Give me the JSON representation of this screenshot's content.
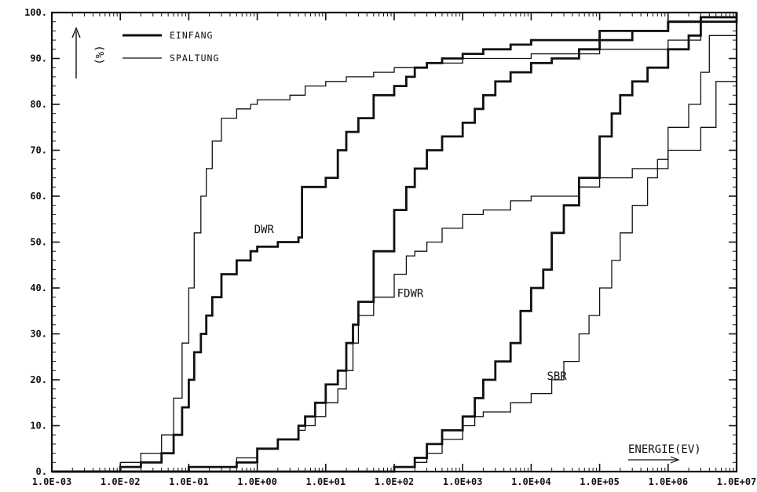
{
  "chart_data": {
    "type": "line",
    "x_scale": "log",
    "xlim": [
      0.001,
      10000000
    ],
    "ylim": [
      0,
      100
    ],
    "grid": false,
    "legend_placement": "top-left",
    "x_tick_labels": [
      "1.0E-03",
      "1.0E-02",
      "1.0E-01",
      "1.0E+00",
      "1.0E+01",
      "1.0E+02",
      "1.0E+03",
      "1.0E+04",
      "1.0E+05",
      "1.0E+06",
      "1.0E+07"
    ],
    "y_tick_labels": [
      "0.",
      "10.",
      "20.",
      "30.",
      "40.",
      "50.",
      "60.",
      "70.",
      "80.",
      "90.",
      "100."
    ],
    "xlabel": "ENERGIE(EV)",
    "ylabel": "(%)",
    "legend": [
      {
        "label": "EINFANG",
        "style": "thick"
      },
      {
        "label": "SPALTUNG",
        "style": "thin"
      }
    ],
    "annotations": [
      {
        "text": "DWR",
        "x": 0.9,
        "y": 52
      },
      {
        "text": "FDWR",
        "x": 110,
        "y": 38
      },
      {
        "text": "SBR",
        "x": 17000,
        "y": 20
      }
    ],
    "series": [
      {
        "reactor": "DWR",
        "kind": "EINFANG",
        "style": "thick",
        "x": [
          0.001,
          0.01,
          0.02,
          0.04,
          0.06,
          0.08,
          0.1,
          0.12,
          0.15,
          0.18,
          0.22,
          0.3,
          0.5,
          0.8,
          1.0,
          2.0,
          4.0,
          4.5,
          10,
          15,
          20,
          30,
          50,
          100,
          150,
          200,
          300,
          500,
          1000,
          2000,
          5000,
          10000,
          100000,
          1000000,
          3000000,
          10000000
        ],
        "y": [
          0,
          1,
          2,
          4,
          8,
          14,
          20,
          26,
          30,
          34,
          38,
          43,
          46,
          48,
          49,
          50,
          51,
          62,
          64,
          70,
          74,
          77,
          82,
          84,
          86,
          88,
          89,
          90,
          91,
          92,
          93,
          94,
          96,
          98,
          99,
          100
        ]
      },
      {
        "reactor": "DWR",
        "kind": "SPALTUNG",
        "style": "thin",
        "x": [
          0.001,
          0.01,
          0.02,
          0.04,
          0.06,
          0.08,
          0.1,
          0.12,
          0.15,
          0.18,
          0.22,
          0.3,
          0.5,
          0.8,
          1.0,
          3.0,
          5.0,
          10,
          20,
          50,
          100,
          300,
          1000,
          10000,
          100000,
          1000000,
          3000000,
          10000000
        ],
        "y": [
          0,
          2,
          4,
          8,
          16,
          28,
          40,
          52,
          60,
          66,
          72,
          77,
          79,
          80,
          81,
          82,
          84,
          85,
          86,
          87,
          88,
          89,
          90,
          91,
          92,
          94,
          98,
          100
        ]
      },
      {
        "reactor": "FDWR",
        "kind": "EINFANG",
        "style": "thick",
        "x": [
          0.001,
          0.05,
          0.1,
          0.5,
          1.0,
          2.0,
          4.0,
          5.0,
          7.0,
          10,
          15,
          20,
          25,
          30,
          50,
          100,
          150,
          200,
          300,
          500,
          1000,
          1500,
          2000,
          3000,
          5000,
          10000,
          20000,
          50000,
          100000,
          300000,
          1000000,
          3000000,
          10000000
        ],
        "y": [
          0,
          0,
          1,
          2,
          5,
          7,
          10,
          12,
          15,
          19,
          22,
          28,
          32,
          37,
          48,
          57,
          62,
          66,
          70,
          73,
          76,
          79,
          82,
          85,
          87,
          89,
          90,
          92,
          94,
          96,
          98,
          99,
          100
        ]
      },
      {
        "reactor": "FDWR",
        "kind": "SPALTUNG",
        "style": "thin",
        "x": [
          0.001,
          0.05,
          0.1,
          0.5,
          1.0,
          2.0,
          4.0,
          5.0,
          7.0,
          10,
          15,
          20,
          25,
          30,
          50,
          100,
          150,
          200,
          300,
          500,
          1000,
          2000,
          5000,
          10000,
          50000,
          100000,
          300000,
          1000000,
          3000000,
          5000000,
          10000000
        ],
        "y": [
          0,
          0,
          1,
          3,
          5,
          7,
          9,
          10,
          12,
          15,
          18,
          22,
          28,
          34,
          38,
          43,
          47,
          48,
          50,
          53,
          56,
          57,
          59,
          60,
          62,
          64,
          66,
          70,
          75,
          85,
          100
        ]
      },
      {
        "reactor": "SBR",
        "kind": "EINFANG",
        "style": "thick",
        "x": [
          0.001,
          50,
          100,
          200,
          300,
          500,
          1000,
          1500,
          2000,
          3000,
          5000,
          7000,
          10000,
          15000,
          20000,
          30000,
          50000,
          100000,
          150000,
          200000,
          300000,
          500000,
          1000000,
          2000000,
          3000000,
          10000000
        ],
        "y": [
          0,
          0,
          1,
          3,
          6,
          9,
          12,
          16,
          20,
          24,
          28,
          35,
          40,
          44,
          52,
          58,
          64,
          73,
          78,
          82,
          85,
          88,
          92,
          95,
          98,
          100
        ]
      },
      {
        "reactor": "SBR",
        "kind": "SPALTUNG",
        "style": "thin",
        "x": [
          0.001,
          50,
          100,
          200,
          300,
          500,
          1000,
          1500,
          2000,
          5000,
          10000,
          20000,
          30000,
          50000,
          70000,
          100000,
          150000,
          200000,
          300000,
          500000,
          700000,
          1000000,
          2000000,
          3000000,
          4000000,
          10000000
        ],
        "y": [
          0,
          0,
          1,
          2,
          4,
          7,
          10,
          12,
          13,
          15,
          17,
          20,
          24,
          30,
          34,
          40,
          46,
          52,
          58,
          64,
          68,
          75,
          80,
          87,
          95,
          100
        ]
      }
    ]
  }
}
